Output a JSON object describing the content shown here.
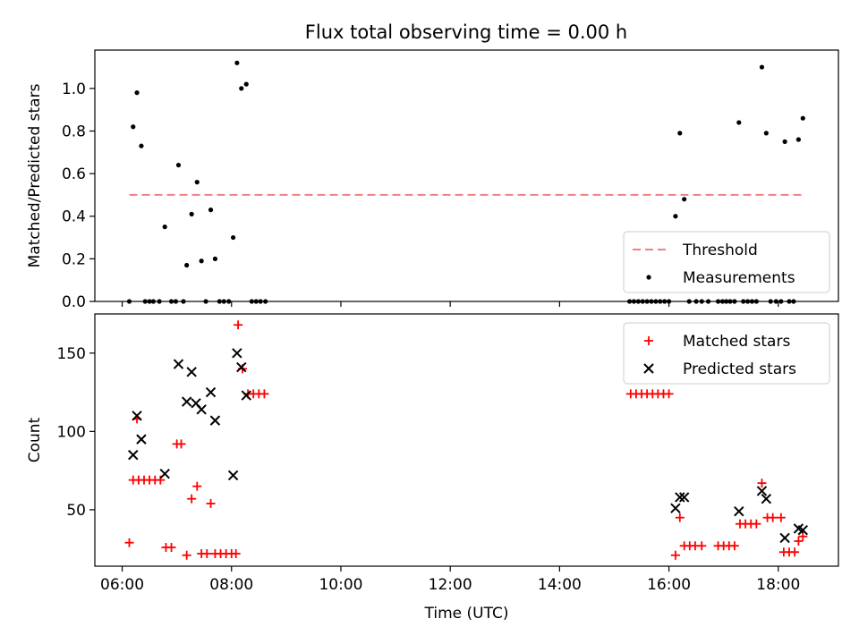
{
  "chart_data": [
    {
      "type": "scatter",
      "title": "Flux total observing time = 0.00 h",
      "xlabel": "",
      "ylabel": "Matched/Predicted stars",
      "ylim": [
        0,
        1.18
      ],
      "yticks": [
        0.0,
        0.2,
        0.4,
        0.6,
        0.8,
        1.0
      ],
      "ytick_labels": [
        "0.0",
        "0.2",
        "0.4",
        "0.6",
        "0.8",
        "1.0"
      ],
      "legend_position": "bottom-right",
      "series": [
        {
          "name": "Threshold",
          "style": "dashed-line",
          "color": "#f08080",
          "points": [
            [
              6.13,
              0.5
            ],
            [
              18.47,
              0.5
            ]
          ]
        },
        {
          "name": "Measurements",
          "style": "dot",
          "color": "#000000",
          "points": [
            [
              6.13,
              0.0
            ],
            [
              6.2,
              0.82
            ],
            [
              6.27,
              0.98
            ],
            [
              6.35,
              0.73
            ],
            [
              6.42,
              0.0
            ],
            [
              6.5,
              0.0
            ],
            [
              6.57,
              0.0
            ],
            [
              6.68,
              0.0
            ],
            [
              6.78,
              0.35
            ],
            [
              6.9,
              0.0
            ],
            [
              6.98,
              0.0
            ],
            [
              7.03,
              0.64
            ],
            [
              7.12,
              0.0
            ],
            [
              7.18,
              0.17
            ],
            [
              7.27,
              0.41
            ],
            [
              7.37,
              0.56
            ],
            [
              7.45,
              0.19
            ],
            [
              7.53,
              0.0
            ],
            [
              7.62,
              0.43
            ],
            [
              7.7,
              0.2
            ],
            [
              7.78,
              0.0
            ],
            [
              7.86,
              0.0
            ],
            [
              7.95,
              0.0
            ],
            [
              8.03,
              0.3
            ],
            [
              8.1,
              1.12
            ],
            [
              8.18,
              1.0
            ],
            [
              8.27,
              1.02
            ],
            [
              8.37,
              0.0
            ],
            [
              8.45,
              0.0
            ],
            [
              8.53,
              0.0
            ],
            [
              8.62,
              0.0
            ],
            [
              15.28,
              0.0
            ],
            [
              15.36,
              0.0
            ],
            [
              15.44,
              0.0
            ],
            [
              15.52,
              0.0
            ],
            [
              15.6,
              0.0
            ],
            [
              15.68,
              0.0
            ],
            [
              15.76,
              0.0
            ],
            [
              15.84,
              0.0
            ],
            [
              15.92,
              0.0
            ],
            [
              16.0,
              0.0
            ],
            [
              16.12,
              0.4
            ],
            [
              16.2,
              0.79
            ],
            [
              16.28,
              0.48
            ],
            [
              16.37,
              0.0
            ],
            [
              16.5,
              0.0
            ],
            [
              16.6,
              0.0
            ],
            [
              16.72,
              0.0
            ],
            [
              16.9,
              0.0
            ],
            [
              16.98,
              0.0
            ],
            [
              17.05,
              0.0
            ],
            [
              17.12,
              0.0
            ],
            [
              17.2,
              0.0
            ],
            [
              17.28,
              0.84
            ],
            [
              17.36,
              0.0
            ],
            [
              17.44,
              0.0
            ],
            [
              17.52,
              0.0
            ],
            [
              17.6,
              0.0
            ],
            [
              17.7,
              1.1
            ],
            [
              17.78,
              0.79
            ],
            [
              17.86,
              0.0
            ],
            [
              17.96,
              0.0
            ],
            [
              18.05,
              0.0
            ],
            [
              18.12,
              0.75
            ],
            [
              18.2,
              0.0
            ],
            [
              18.28,
              0.0
            ],
            [
              18.37,
              0.76
            ],
            [
              18.45,
              0.86
            ]
          ]
        }
      ]
    },
    {
      "type": "scatter",
      "title": "",
      "xlabel": "Time (UTC)",
      "ylabel": "Count",
      "xlim": [
        5.5,
        19.1
      ],
      "xticks": [
        6,
        8,
        10,
        12,
        14,
        16,
        18
      ],
      "xtick_labels": [
        "06:00",
        "08:00",
        "10:00",
        "12:00",
        "14:00",
        "16:00",
        "18:00"
      ],
      "ylim": [
        14,
        175
      ],
      "yticks": [
        50,
        100,
        150
      ],
      "ytick_labels": [
        "50",
        "100",
        "150"
      ],
      "legend_position": "top-right",
      "series": [
        {
          "name": "Matched stars",
          "marker": "plus",
          "color": "#ff0000",
          "points": [
            [
              6.13,
              29
            ],
            [
              6.2,
              69
            ],
            [
              6.27,
              108
            ],
            [
              6.3,
              69
            ],
            [
              6.4,
              69
            ],
            [
              6.5,
              69
            ],
            [
              6.6,
              69
            ],
            [
              6.7,
              69
            ],
            [
              6.8,
              26
            ],
            [
              6.9,
              26
            ],
            [
              7.0,
              92
            ],
            [
              7.08,
              92
            ],
            [
              7.18,
              21
            ],
            [
              7.27,
              57
            ],
            [
              7.37,
              65
            ],
            [
              7.45,
              22
            ],
            [
              7.55,
              22
            ],
            [
              7.62,
              54
            ],
            [
              7.7,
              22
            ],
            [
              7.8,
              22
            ],
            [
              7.9,
              22
            ],
            [
              8.0,
              22
            ],
            [
              8.08,
              22
            ],
            [
              8.12,
              168
            ],
            [
              8.2,
              140
            ],
            [
              8.3,
              124
            ],
            [
              8.4,
              124
            ],
            [
              8.5,
              124
            ],
            [
              8.6,
              124
            ],
            [
              15.3,
              124
            ],
            [
              15.4,
              124
            ],
            [
              15.5,
              124
            ],
            [
              15.6,
              124
            ],
            [
              15.7,
              124
            ],
            [
              15.8,
              124
            ],
            [
              15.9,
              124
            ],
            [
              16.0,
              124
            ],
            [
              16.12,
              21
            ],
            [
              16.2,
              45
            ],
            [
              16.28,
              27
            ],
            [
              16.38,
              27
            ],
            [
              16.48,
              27
            ],
            [
              16.6,
              27
            ],
            [
              16.9,
              27
            ],
            [
              17.0,
              27
            ],
            [
              17.1,
              27
            ],
            [
              17.2,
              27
            ],
            [
              17.3,
              41
            ],
            [
              17.4,
              41
            ],
            [
              17.5,
              41
            ],
            [
              17.6,
              41
            ],
            [
              17.7,
              67
            ],
            [
              17.8,
              45
            ],
            [
              17.9,
              45
            ],
            [
              18.05,
              45
            ],
            [
              18.1,
              23
            ],
            [
              18.2,
              23
            ],
            [
              18.3,
              23
            ],
            [
              18.37,
              30
            ],
            [
              18.45,
              33
            ]
          ]
        },
        {
          "name": "Predicted stars",
          "marker": "x",
          "color": "#000000",
          "points": [
            [
              6.2,
              85
            ],
            [
              6.27,
              110
            ],
            [
              6.35,
              95
            ],
            [
              6.78,
              73
            ],
            [
              7.03,
              143
            ],
            [
              7.18,
              119
            ],
            [
              7.27,
              138
            ],
            [
              7.35,
              118
            ],
            [
              7.45,
              114
            ],
            [
              7.62,
              125
            ],
            [
              7.7,
              107
            ],
            [
              8.03,
              72
            ],
            [
              8.1,
              150
            ],
            [
              8.18,
              141
            ],
            [
              8.27,
              123
            ],
            [
              16.12,
              51
            ],
            [
              16.2,
              58
            ],
            [
              16.28,
              58
            ],
            [
              17.28,
              49
            ],
            [
              17.7,
              62
            ],
            [
              17.78,
              57
            ],
            [
              18.12,
              32
            ],
            [
              18.37,
              38
            ],
            [
              18.45,
              37
            ]
          ]
        }
      ]
    }
  ]
}
